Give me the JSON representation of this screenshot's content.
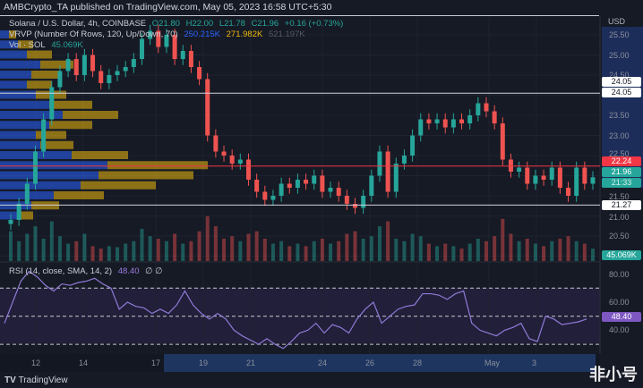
{
  "header": {
    "published": "AMBCrypto_TA published on TradingView.com, May 05, 2023 16:58 UTC+5:30"
  },
  "legend": {
    "symbol": "Solana / U.S. Dollar, 4h, COINBASE",
    "o": "O21.80",
    "h": "H22.00",
    "l": "L21.78",
    "c": "C21.96",
    "chg": "+0.16 (+0.73%)",
    "vrvp": "VRVP (Number Of Rows, 120, Up/Down, 70)",
    "vrvp_up": "250.215K",
    "vrvp_down": "271.982K",
    "vrvp_total": "521.197K",
    "vol": "Vol · SOL",
    "vol_val": "45.069K",
    "rsi": "RSI (14, close, SMA, 14, 2)",
    "rsi_val": "48.40",
    "rsi_extra": "∅ ∅"
  },
  "price_axis": {
    "unit": "USD",
    "ticks": [
      "25.50",
      "25.00",
      "24.50",
      "23.50",
      "23.00",
      "22.50",
      "21.50",
      "21.00",
      "20.50"
    ],
    "labels": {
      "line_top": "24.05",
      "line_top2": "24.05",
      "red": "22.24",
      "last": "21.96",
      "countdown": "21:33",
      "line_low": "21.27",
      "volume": "45.069K"
    }
  },
  "rsi_axis": {
    "ticks": [
      "80.00",
      "60.00",
      "40.00"
    ],
    "current": "48.40"
  },
  "time_axis": {
    "ticks": [
      [
        "12",
        40
      ],
      [
        "14",
        93
      ],
      [
        "17",
        174
      ],
      [
        "19",
        227
      ],
      [
        "21",
        280
      ],
      [
        "24",
        360
      ],
      [
        "26",
        413
      ],
      [
        "28",
        466
      ],
      [
        "May",
        546
      ],
      [
        "3",
        599
      ]
    ]
  },
  "footer": {
    "brand": "TradingView"
  },
  "watermark": "非小号",
  "colors": {
    "up": "#26a69a",
    "down": "#ef5350",
    "bg": "#161a25",
    "red_line": "#f23645",
    "rsi": "#7e57c2",
    "vrvp_up": "#2962ff",
    "vrvp_down": "#f0b90b"
  },
  "chart_data": {
    "type": "candlestick",
    "timeframe": "4h",
    "ylim": [
      20.3,
      25.7
    ],
    "close": [
      20.9,
      21.3,
      21.8,
      22.6,
      23.4,
      24.2,
      24.6,
      24.9,
      24.5,
      25.0,
      24.6,
      24.3,
      24.5,
      24.6,
      24.7,
      24.9,
      25.4,
      25.6,
      25.2,
      25.5,
      24.9,
      25.1,
      24.7,
      24.4,
      23.0,
      22.6,
      22.5,
      22.3,
      22.4,
      21.9,
      21.6,
      21.4,
      21.5,
      21.8,
      21.7,
      21.9,
      21.8,
      22.0,
      21.6,
      21.7,
      21.5,
      21.3,
      21.2,
      21.5,
      22.0,
      22.6,
      21.6,
      22.3,
      22.5,
      23.0,
      23.4,
      23.3,
      23.4,
      23.2,
      23.4,
      23.3,
      23.5,
      23.8,
      23.6,
      23.3,
      22.4,
      22.1,
      22.2,
      21.8,
      22.0,
      21.9,
      22.2,
      21.7,
      21.5,
      22.2,
      21.8,
      21.96
    ],
    "volume": [
      60,
      40,
      55,
      70,
      45,
      80,
      50,
      35,
      40,
      55,
      30,
      25,
      30,
      28,
      35,
      40,
      65,
      50,
      45,
      40,
      55,
      35,
      40,
      60,
      90,
      70,
      45,
      50,
      40,
      55,
      60,
      45,
      35,
      40,
      30,
      35,
      30,
      40,
      45,
      35,
      40,
      55,
      60,
      45,
      50,
      70,
      80,
      45,
      40,
      55,
      50,
      35,
      30,
      35,
      30,
      25,
      35,
      45,
      40,
      50,
      85,
      55,
      40,
      45,
      35,
      30,
      40,
      45,
      50,
      40,
      35,
      25
    ],
    "rsi": [
      45,
      60,
      75,
      82,
      78,
      72,
      68,
      73,
      72,
      74,
      75,
      77,
      73,
      70,
      55,
      60,
      57,
      56,
      52,
      55,
      52,
      58,
      68,
      58,
      52,
      48,
      52,
      48,
      40,
      36,
      33,
      30,
      34,
      30,
      27,
      32,
      38,
      40,
      45,
      38,
      44,
      42,
      38,
      48,
      55,
      60,
      45,
      50,
      55,
      57,
      58,
      66,
      66,
      65,
      62,
      66,
      68,
      45,
      40,
      38,
      36,
      40,
      42,
      45,
      34,
      32,
      50,
      48,
      44,
      45,
      46,
      48
    ],
    "rsi_levels": [
      70,
      50,
      30
    ],
    "hlines": [
      24.05,
      22.24,
      21.27
    ],
    "vrvp": {
      "prices": [
        21.0,
        21.25,
        21.5,
        21.75,
        22.0,
        22.25,
        22.5,
        22.75,
        23.0,
        23.25,
        23.5,
        23.75,
        24.0,
        24.25,
        24.5,
        24.75,
        25.0,
        25.25,
        25.5
      ],
      "up": [
        20,
        35,
        60,
        90,
        110,
        120,
        80,
        45,
        40,
        55,
        70,
        55,
        40,
        30,
        35,
        45,
        30,
        20,
        10
      ],
      "down": [
        25,
        45,
        80,
        120,
        150,
        160,
        95,
        55,
        50,
        70,
        90,
        70,
        50,
        40,
        45,
        55,
        40,
        25,
        12
      ]
    }
  }
}
